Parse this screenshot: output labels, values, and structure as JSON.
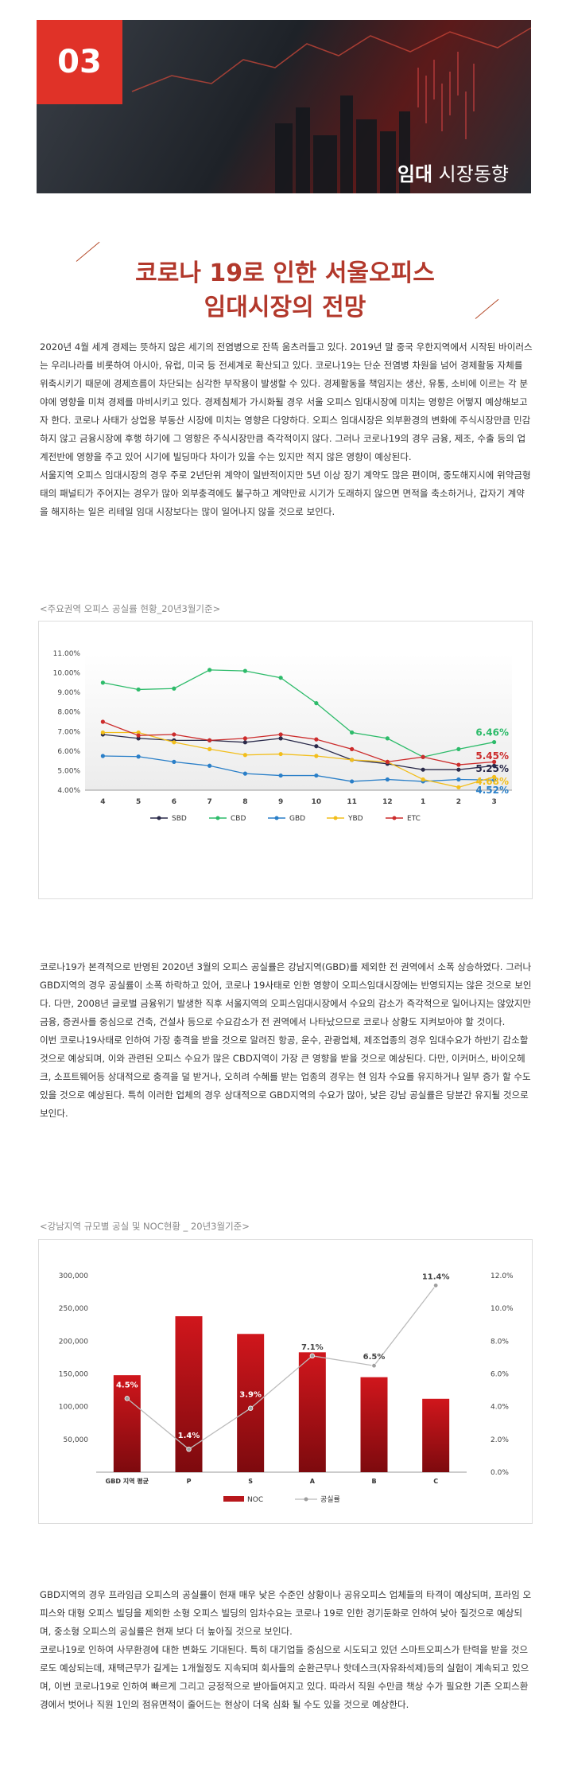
{
  "banner": {
    "number": "03",
    "section_bold": "임대",
    "section_rest": " 시장동향"
  },
  "title": {
    "line1": "코로나 19로 인한 서울오피스",
    "line2": "임대시장의 전망"
  },
  "intro": [
    "2020년 4월 세계 경제는 뜻하지 않은 세기의 전염병으로 잔뜩 움츠러들고 있다. 2019년 말 중국 우한지역에서 시작된 바이러스는 우리나라를 비롯하여 아시아, 유럽, 미국 등 전세계로 확산되고 있다. 코로나19는 단순 전염병 차원을 넘어 경제활동 자체를 위축시키기 때문에 경제흐름이 차단되는 심각한 부작용이 발생할 수 있다. 경제활동을 책임지는 생산, 유통, 소비에 이르는 각 분야에 영향을 미쳐 경제를 마비시키고 있다. 경제침체가 가시화될 경우 서울 오피스 임대시장에 미치는 영향은 어떻지 예상해보고자 한다. 코로나 사태가 상업용 부동산 시장에 미치는 영향은 다양하다. 오피스 임대시장은 외부환경의 변화에 주식시장만큼 민감하지 않고 금융시장에 후행 하기에 그 영향은 주식시장만큼 즉각적이지 않다. 그러나 코로나19의 경우 금융, 제조, 수출 등의 업계전반에 영향을 주고 있어 시기에 빌딩마다 차이가 있을 수는 있지만 적지 않은 영향이 예상된다.",
    "서울지역 오피스 임대시장의 경우 주로 2년단위 계약이 일반적이지만 5년 이상 장기 계약도 많은 편이며, 중도해지시에 위약금형태의 패널티가 주어지는 경우가 많아 외부충격에도 불구하고 계약만료 시기가 도래하지 않으면 면적을 축소하거나, 갑자기 계약을 해지하는 일은 리테일 임대 시장보다는 많이 일어나지 않을 것으로 보인다."
  ],
  "chart1_caption": "<주요권역 오피스 공실률 현황_20년3월기준>",
  "para2": [
    "코로나19가 본격적으로 반영된 2020년 3월의 오피스 공실률은 강남지역(GBD)를 제외한 전 권역에서 소폭 상승하였다. 그러나 GBD지역의 경우 공실률이 소폭 하락하고 있어, 코로나 19사태로 인한 영향이 오피스임대시장에는 반영되지는 않은 것으로 보인다. 다만, 2008년 글로벌 금융위기 발생한 직후 서울지역의 오피스임대시장에서 수요의 감소가 즉각적으로 일어나지는 않았지만 금융, 증권사를 중심으로 건축, 건설사 등으로 수요감소가 전 권역에서 나타났으므로 코로나 상황도 지켜보아야 할 것이다.",
    "이번 코로나19사태로 인하여 가장 충격을 받을 것으로 알려진 항공, 운수, 관광업체, 제조업종의 경우 임대수요가 하반기 감소할 것으로 예상되며, 이와 관련된 오피스 수요가 많은 CBD지역이 가장 큰 영향을 받을 것으로 예상된다. 다만, 이커머스, 바이오헤크, 소프트웨어등 상대적으로 충격을 덜 받거나, 오히려 수혜를 받는 업종의 경우는 현 임차 수요를 유지하거나 일부 증가 할 수도 있을 것으로 예상된다. 특히 이러한 업체의 경우 상대적으로 GBD지역의 수요가 많아, 낮은 강남 공실률은 당분간 유지될 것으로 보인다."
  ],
  "chart2_caption": "<강남지역 규모별 공실 및 NOC현황 _ 20년3월기준>",
  "para3": [
    "GBD지역의 경우 프라임급 오피스의 공실률이 현재 매우 낮은 수준인 상황이나 공유오피스 업체들의 타격이 예상되며, 프라임 오피스와 대형 오피스 빌딩을 제외한 소형 오피스 빌딩의 임차수요는 코로나 19로 인한 경기둔화로 인하여 낮아 질것으로 예상되며, 중소형 오피스의 공실률은 현재 보다 더 높아질 것으로 보인다.",
    "코로나19로 인하여 사무환경에 대한 변화도 기대된다. 특히 대기업들 중심으로 시도되고 있던 스마트오피스가 탄력을 받을 것으로도 예상되는데, 재택근무가 길게는 1개월정도 지속되며 회사들의 순환근무나 핫데스크(자유좌석제)등의 실험이 계속되고 있으며, 이번 코로나19로 인하여 빠르게 그리고 긍정적으로 받아들여지고 있다. 따라서 직원 수만큼 책상 수가 필요한 기존 오피스환경에서 벗어나 직원 1인의 점유면적이 줄어드는 현상이 더욱 심화 될 수도 있을 것으로 예상한다."
  ],
  "chart_data": [
    {
      "type": "line",
      "x": [
        "4",
        "5",
        "6",
        "7",
        "8",
        "9",
        "10",
        "11",
        "12",
        "1",
        "2",
        "3"
      ],
      "ylim": [
        4.0,
        11.0
      ],
      "yticks": [
        "4.00%",
        "5.00%",
        "6.00%",
        "7.00%",
        "8.00%",
        "9.00%",
        "10.00%",
        "11.00%"
      ],
      "legend_position": "bottom",
      "series": [
        {
          "name": "SBD",
          "color": "#2a2a4a",
          "values": [
            6.85,
            6.65,
            6.55,
            6.55,
            6.45,
            6.65,
            6.25,
            5.55,
            5.35,
            5.05,
            5.05,
            5.25
          ]
        },
        {
          "name": "CBD",
          "color": "#2dbb6a",
          "values": [
            9.5,
            9.15,
            9.2,
            10.15,
            10.1,
            9.75,
            8.45,
            6.95,
            6.65,
            5.7,
            6.1,
            6.46
          ]
        },
        {
          "name": "GBD",
          "color": "#2a7fc8",
          "values": [
            5.75,
            5.72,
            5.45,
            5.25,
            4.85,
            4.75,
            4.75,
            4.45,
            4.55,
            4.45,
            4.55,
            4.52
          ]
        },
        {
          "name": "YBD",
          "color": "#f2be1b",
          "values": [
            6.95,
            6.95,
            6.45,
            6.1,
            5.8,
            5.85,
            5.75,
            5.55,
            5.45,
            4.55,
            4.15,
            4.68
          ]
        },
        {
          "name": "ETC",
          "color": "#cc2c2c",
          "values": [
            7.5,
            6.8,
            6.85,
            6.55,
            6.65,
            6.85,
            6.6,
            6.1,
            5.45,
            5.7,
            5.3,
            5.45
          ]
        }
      ],
      "end_labels": [
        "6.46%",
        "5.45%",
        "5.25%",
        "4.68%",
        "4.52%"
      ]
    },
    {
      "type": "bar",
      "categories": [
        "GBD 지역 평균",
        "P",
        "S",
        "A",
        "B",
        "C"
      ],
      "series": [
        {
          "name": "NOC",
          "axis": "left",
          "color": "#b8171c",
          "values": [
            148000,
            238000,
            211000,
            183000,
            145000,
            112000
          ]
        },
        {
          "name": "공실률",
          "axis": "right",
          "color": "#bbbbbb",
          "values": [
            4.5,
            1.4,
            3.9,
            7.1,
            6.5,
            11.4
          ],
          "labels": [
            "4.5%",
            "1.4%",
            "3.9%",
            "7.1%",
            "6.5%",
            "11.4%"
          ]
        }
      ],
      "ylim_left": [
        0,
        300000
      ],
      "yticks_left": [
        "300,000",
        "250,000",
        "200,000",
        "150,000",
        "100,000",
        "50,000"
      ],
      "ylim_right": [
        0,
        12
      ],
      "yticks_right": [
        "12.0%",
        "10.0%",
        "8.0%",
        "6.0%",
        "4.0%",
        "2.0%",
        "0.0%"
      ],
      "legend_position": "bottom"
    }
  ]
}
